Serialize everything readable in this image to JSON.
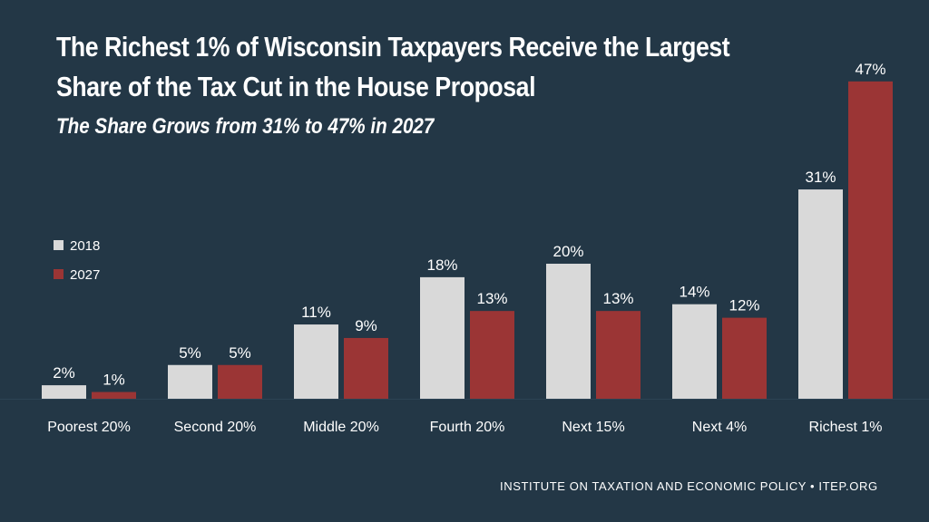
{
  "header": {
    "title": "The Richest 1% of Wisconsin Taxpayers Receive the Largest Share of the Tax Cut in the House Proposal",
    "subtitle": "The Share Grows from 31% to 47% in 2027"
  },
  "footer": {
    "source": "INSTITUTE ON TAXATION AND ECONOMIC POLICY • ITEP.ORG"
  },
  "colors": {
    "background": "#233746",
    "series_2018": "#d9d9d9",
    "series_2027": "#9b3535",
    "text": "#ffffff"
  },
  "chart_data": {
    "type": "bar",
    "title": "The Richest 1% of Wisconsin Taxpayers Receive the Largest Share of the Tax Cut in the House Proposal",
    "subtitle": "The Share Grows from 31% to 47% in 2027",
    "xlabel": "",
    "ylabel": "",
    "ylim": [
      0,
      50
    ],
    "grid": false,
    "legend_position": "left",
    "categories": [
      "Poorest 20%",
      "Second 20%",
      "Middle 20%",
      "Fourth 20%",
      "Next 15%",
      "Next 4%",
      "Richest 1%"
    ],
    "series": [
      {
        "name": "2018",
        "color": "#d9d9d9",
        "values": [
          2,
          5,
          11,
          18,
          20,
          14,
          31
        ],
        "labels": [
          "2%",
          "5%",
          "11%",
          "18%",
          "20%",
          "14%",
          "31%"
        ]
      },
      {
        "name": "2027",
        "color": "#9b3535",
        "values": [
          1,
          5,
          9,
          13,
          13,
          12,
          47
        ],
        "labels": [
          "1%",
          "5%",
          "9%",
          "13%",
          "13%",
          "12%",
          "47%"
        ]
      }
    ]
  }
}
